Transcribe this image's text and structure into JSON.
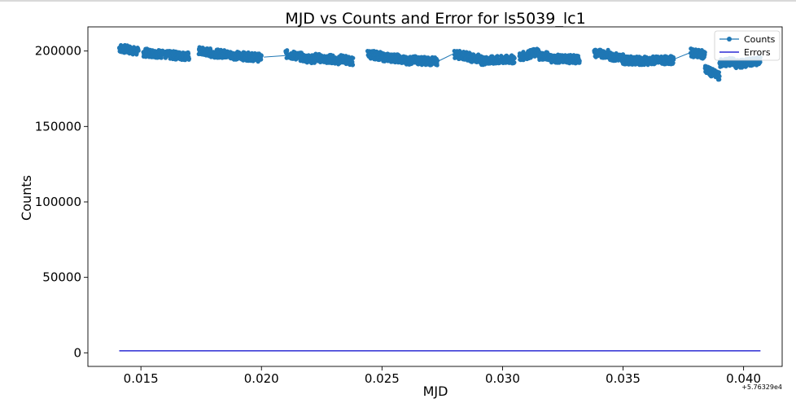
{
  "chart_data": {
    "type": "line",
    "title": "MJD vs Counts and Error for ls5039_lc1",
    "xlabel": "MJD",
    "ylabel": "Counts",
    "x_offset_label": "+5.76329e4",
    "xlim": [
      0.0128,
      0.0416
    ],
    "ylim": [
      -9000,
      216000
    ],
    "x_ticks": [
      0.015,
      0.02,
      0.025,
      0.03,
      0.035,
      0.04
    ],
    "x_tick_labels": [
      "0.015",
      "0.020",
      "0.025",
      "0.030",
      "0.035",
      "0.040"
    ],
    "y_ticks": [
      0,
      50000,
      100000,
      150000,
      200000
    ],
    "y_tick_labels": [
      "0",
      "50000",
      "100000",
      "150000",
      "200000"
    ],
    "grid": false,
    "legend_position": "top-right",
    "series": [
      {
        "name": "Counts",
        "style": "line+markers",
        "color": "#1f77b4",
        "segments": [
          {
            "x": [
              0.0141,
              0.0149
            ],
            "y": [
              202000,
              199500
            ]
          },
          {
            "x": [
              0.0151,
              0.0159
            ],
            "y": [
              199000,
              198000
            ]
          },
          {
            "x": [
              0.016,
              0.017
            ],
            "y": [
              197500,
              196500
            ]
          },
          {
            "x": [
              0.0174,
              0.0179
            ],
            "y": [
              200000,
              199000
            ]
          },
          {
            "x": [
              0.0179,
              0.0186
            ],
            "y": [
              198500,
              198000
            ]
          },
          {
            "x": [
              0.0186,
              0.02
            ],
            "y": [
              197500,
              195500
            ]
          },
          {
            "x": [
              0.021,
              0.0217
            ],
            "y": [
              198000,
              196000
            ]
          },
          {
            "x": [
              0.0217,
              0.0222
            ],
            "y": [
              195500,
              194500
            ]
          },
          {
            "x": [
              0.0222,
              0.0228
            ],
            "y": [
              196000,
              194000
            ]
          },
          {
            "x": [
              0.0228,
              0.0233
            ],
            "y": [
              195000,
              193500
            ]
          },
          {
            "x": [
              0.0233,
              0.0238
            ],
            "y": [
              195000,
              193000
            ]
          },
          {
            "x": [
              0.0244,
              0.025
            ],
            "y": [
              198000,
              196500
            ]
          },
          {
            "x": [
              0.025,
              0.0257
            ],
            "y": [
              196000,
              195000
            ]
          },
          {
            "x": [
              0.0257,
              0.0262
            ],
            "y": [
              194500,
              193500
            ]
          },
          {
            "x": [
              0.0262,
              0.0273
            ],
            "y": [
              194000,
              193000
            ]
          },
          {
            "x": [
              0.028,
              0.0287
            ],
            "y": [
              198000,
              196000
            ]
          },
          {
            "x": [
              0.0287,
              0.0291
            ],
            "y": [
              195500,
              195000
            ]
          },
          {
            "x": [
              0.0291,
              0.0305
            ],
            "y": [
              193500,
              194500
            ]
          },
          {
            "x": [
              0.0307,
              0.0315
            ],
            "y": [
              196000,
              199500
            ]
          },
          {
            "x": [
              0.0315,
              0.032
            ],
            "y": [
              197000,
              196500
            ]
          },
          {
            "x": [
              0.032,
              0.0332
            ],
            "y": [
              195000,
              194500
            ]
          },
          {
            "x": [
              0.0338,
              0.0344
            ],
            "y": [
              198500,
              198000
            ]
          },
          {
            "x": [
              0.0344,
              0.035
            ],
            "y": [
              196500,
              195500
            ]
          },
          {
            "x": [
              0.035,
              0.0357
            ],
            "y": [
              194000,
              193500
            ]
          },
          {
            "x": [
              0.0357,
              0.0371
            ],
            "y": [
              193500,
              194000
            ]
          },
          {
            "x": [
              0.0378,
              0.0384
            ],
            "y": [
              199000,
              197500
            ]
          },
          {
            "x": [
              0.0384,
              0.039
            ],
            "y": [
              188000,
              183000
            ]
          },
          {
            "x": [
              0.039,
              0.0396
            ],
            "y": [
              192000,
              193000
            ]
          },
          {
            "x": [
              0.0396,
              0.0407
            ],
            "y": [
              191000,
              193500
            ]
          }
        ],
        "connectors": [
          {
            "x": [
              0.0201,
              0.021
            ],
            "y": [
              196000,
              197000
            ]
          },
          {
            "x": [
              0.0273,
              0.028
            ],
            "y": [
              193000,
              198500
            ]
          },
          {
            "x": [
              0.0371,
              0.0378
            ],
            "y": [
              194500,
              199000
            ]
          }
        ]
      },
      {
        "name": "Errors",
        "style": "line",
        "color": "#0000cc",
        "x": [
          0.0141,
          0.0407
        ],
        "y": [
          1300,
          1300
        ]
      }
    ]
  }
}
